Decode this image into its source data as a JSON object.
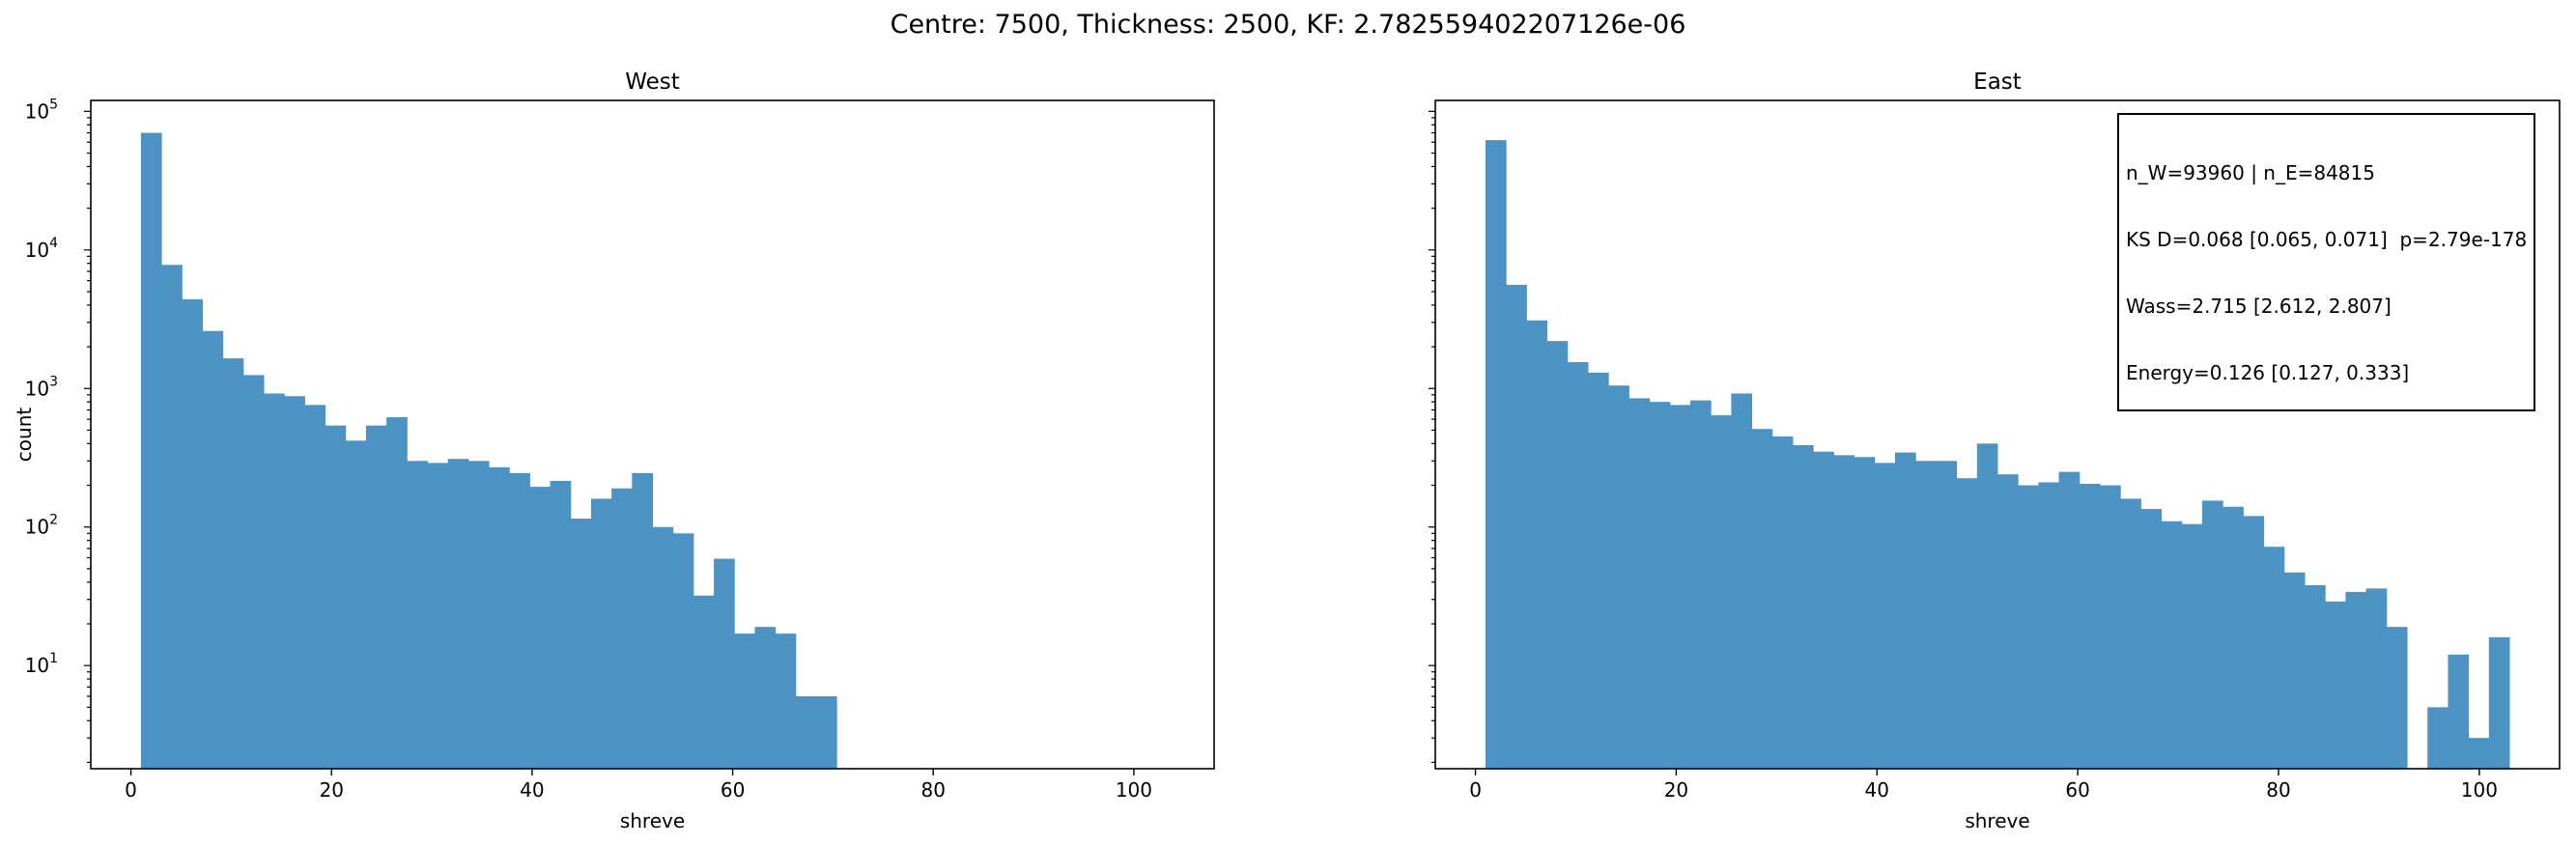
{
  "suptitle": "Centre: 7500, Thickness: 2500, KF: 2.782559402207126e-06",
  "colors": {
    "bar": "#4c93c4",
    "axis": "#000000"
  },
  "stats_box": {
    "line1": "n_W=93960 | n_E=84815",
    "line2": "KS D=0.068 [0.065, 0.071]  p=2.79e-178",
    "line3": "Wass=2.715 [2.612, 2.807]",
    "line4": "Energy=0.126 [0.127, 0.333]"
  },
  "chart_data": [
    {
      "type": "bar",
      "title": "West",
      "xlabel": "shreve",
      "ylabel": "count",
      "y_scale": "log",
      "xlim": [
        -4,
        108
      ],
      "ylim": [
        1.8,
        120000
      ],
      "x_ticks": [
        0,
        20,
        40,
        60,
        80,
        100
      ],
      "y_ticks": [
        "10^1",
        "10^2",
        "10^3",
        "10^4",
        "10^5"
      ],
      "bin_width": 2.04,
      "bin_starts": [
        1,
        3.04,
        5.08,
        7.12,
        9.16,
        11.2,
        13.24,
        15.28,
        17.32,
        19.36,
        21.4,
        23.44,
        25.48,
        27.52,
        29.56,
        31.6,
        33.64,
        35.68,
        37.72,
        39.76,
        41.8,
        43.84,
        45.88,
        47.92,
        49.96,
        52,
        54.04,
        56.08,
        58.12,
        60.16,
        62.2,
        64.24,
        66.28,
        68.32,
        70.36
      ],
      "counts": [
        70000,
        7800,
        4400,
        2600,
        1650,
        1250,
        920,
        880,
        760,
        540,
        420,
        540,
        620,
        300,
        290,
        310,
        300,
        270,
        245,
        195,
        215,
        115,
        160,
        190,
        245,
        100,
        90,
        32,
        59,
        17,
        19,
        17,
        6,
        6,
        0
      ]
    },
    {
      "type": "bar",
      "title": "East",
      "xlabel": "shreve",
      "ylabel": "",
      "y_scale": "log",
      "xlim": [
        -4,
        108
      ],
      "ylim": [
        1.8,
        120000
      ],
      "x_ticks": [
        0,
        20,
        40,
        60,
        80,
        100
      ],
      "bin_width": 2.04,
      "bin_starts": [
        1,
        3.04,
        5.08,
        7.12,
        9.16,
        11.2,
        13.24,
        15.28,
        17.32,
        19.36,
        21.4,
        23.44,
        25.48,
        27.52,
        29.56,
        31.6,
        33.64,
        35.68,
        37.72,
        39.76,
        41.8,
        43.84,
        45.88,
        47.92,
        49.96,
        52,
        54.04,
        56.08,
        58.12,
        60.16,
        62.2,
        64.24,
        66.28,
        68.32,
        70.36,
        72.4,
        74.44,
        76.48,
        78.52,
        80.56,
        82.6,
        84.64,
        86.68,
        88.72,
        90.76,
        92.8,
        94.84,
        96.88,
        98.92,
        100.96
      ],
      "counts": [
        62000,
        5600,
        3100,
        2200,
        1550,
        1300,
        1050,
        850,
        800,
        760,
        820,
        640,
        920,
        510,
        450,
        390,
        350,
        330,
        320,
        290,
        345,
        300,
        300,
        225,
        400,
        240,
        200,
        210,
        250,
        205,
        200,
        160,
        135,
        110,
        105,
        155,
        140,
        120,
        72,
        47,
        38,
        29,
        34,
        36,
        19,
        0,
        5,
        12,
        3,
        16
      ]
    }
  ]
}
